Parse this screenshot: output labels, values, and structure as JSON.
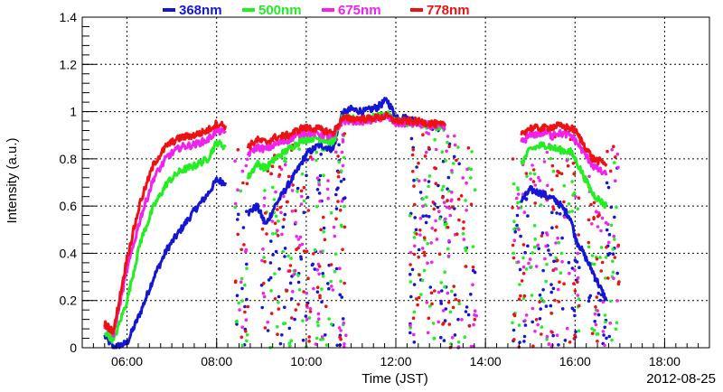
{
  "chart_data": {
    "type": "scatter",
    "title": "",
    "xlabel": "Time (JST)",
    "ylabel": "Intensity (a.u.)",
    "date_label": "2012-08-25",
    "xlim": [
      5.0,
      19.0
    ],
    "ylim": [
      0,
      1.4
    ],
    "x_ticks": [
      {
        "value": 6,
        "label": "06:00"
      },
      {
        "value": 8,
        "label": "08:00"
      },
      {
        "value": 10,
        "label": "10:00"
      },
      {
        "value": 12,
        "label": "12:00"
      },
      {
        "value": 14,
        "label": "14:00"
      },
      {
        "value": 16,
        "label": "16:00"
      },
      {
        "value": 18,
        "label": "18:00"
      }
    ],
    "y_ticks": [
      {
        "value": 0,
        "label": "0"
      },
      {
        "value": 0.2,
        "label": "0.2"
      },
      {
        "value": 0.4,
        "label": "0.4"
      },
      {
        "value": 0.6,
        "label": "0.6"
      },
      {
        "value": 0.8,
        "label": "0.8"
      },
      {
        "value": 1.0,
        "label": "1"
      },
      {
        "value": 1.2,
        "label": "1.2"
      },
      {
        "value": 1.4,
        "label": "1.4"
      }
    ],
    "grid": true,
    "legend_position": "top",
    "series": [
      {
        "name": "368nm",
        "color": "#1515d6",
        "values": [
          [
            5.5,
            0.05
          ],
          [
            5.7,
            0.0
          ],
          [
            6.0,
            0.02
          ],
          [
            6.3,
            0.15
          ],
          [
            6.6,
            0.3
          ],
          [
            6.9,
            0.42
          ],
          [
            7.2,
            0.5
          ],
          [
            7.5,
            0.58
          ],
          [
            7.8,
            0.65
          ],
          [
            8.0,
            0.71
          ],
          [
            8.2,
            0.7
          ],
          [
            8.7,
            0.57
          ],
          [
            8.9,
            0.6
          ],
          [
            9.1,
            0.52
          ],
          [
            9.3,
            0.6
          ],
          [
            9.5,
            0.66
          ],
          [
            9.8,
            0.75
          ],
          [
            10.0,
            0.82
          ],
          [
            10.3,
            0.86
          ],
          [
            10.6,
            0.84
          ],
          [
            10.8,
            0.99
          ],
          [
            11.0,
            1.01
          ],
          [
            11.3,
            1.0
          ],
          [
            11.6,
            1.02
          ],
          [
            11.8,
            1.05
          ],
          [
            12.0,
            0.98
          ],
          [
            12.3,
            0.97
          ],
          [
            12.6,
            0.95
          ],
          [
            12.9,
            0.93
          ],
          [
            13.1,
            0.94
          ],
          [
            14.8,
            0.62
          ],
          [
            15.0,
            0.67
          ],
          [
            15.3,
            0.65
          ],
          [
            15.6,
            0.62
          ],
          [
            15.9,
            0.55
          ],
          [
            16.0,
            0.47
          ],
          [
            16.4,
            0.32
          ],
          [
            16.7,
            0.2
          ]
        ],
        "scatter_bounds": [
          [
            8.4,
            8.7
          ],
          [
            9.0,
            10.9
          ],
          [
            12.3,
            13.8
          ],
          [
            14.6,
            16.1
          ],
          [
            16.3,
            17.0
          ]
        ]
      },
      {
        "name": "500nm",
        "color": "#22ee22",
        "values": [
          [
            5.5,
            0.07
          ],
          [
            5.7,
            0.03
          ],
          [
            6.0,
            0.2
          ],
          [
            6.3,
            0.45
          ],
          [
            6.6,
            0.6
          ],
          [
            6.9,
            0.7
          ],
          [
            7.2,
            0.75
          ],
          [
            7.5,
            0.77
          ],
          [
            7.8,
            0.8
          ],
          [
            8.0,
            0.87
          ],
          [
            8.2,
            0.85
          ],
          [
            8.7,
            0.72
          ],
          [
            8.9,
            0.78
          ],
          [
            9.1,
            0.76
          ],
          [
            9.3,
            0.8
          ],
          [
            9.6,
            0.84
          ],
          [
            9.9,
            0.88
          ],
          [
            10.2,
            0.89
          ],
          [
            10.6,
            0.87
          ],
          [
            10.8,
            0.97
          ],
          [
            11.0,
            0.97
          ],
          [
            11.4,
            0.97
          ],
          [
            11.8,
            0.99
          ],
          [
            12.0,
            0.96
          ],
          [
            12.4,
            0.95
          ],
          [
            12.8,
            0.94
          ],
          [
            13.1,
            0.93
          ],
          [
            14.8,
            0.78
          ],
          [
            15.0,
            0.84
          ],
          [
            15.3,
            0.86
          ],
          [
            15.6,
            0.84
          ],
          [
            15.9,
            0.83
          ],
          [
            16.0,
            0.8
          ],
          [
            16.4,
            0.65
          ],
          [
            16.7,
            0.6
          ]
        ],
        "scatter_bounds": [
          [
            8.4,
            8.7
          ],
          [
            9.0,
            10.9
          ],
          [
            12.3,
            13.8
          ],
          [
            14.6,
            16.1
          ],
          [
            16.3,
            17.0
          ]
        ]
      },
      {
        "name": "675nm",
        "color": "#f022f0",
        "values": [
          [
            5.5,
            0.09
          ],
          [
            5.7,
            0.06
          ],
          [
            6.0,
            0.33
          ],
          [
            6.3,
            0.55
          ],
          [
            6.6,
            0.72
          ],
          [
            6.9,
            0.81
          ],
          [
            7.2,
            0.85
          ],
          [
            7.5,
            0.86
          ],
          [
            7.8,
            0.88
          ],
          [
            8.0,
            0.92
          ],
          [
            8.2,
            0.91
          ],
          [
            8.7,
            0.82
          ],
          [
            8.9,
            0.85
          ],
          [
            9.1,
            0.84
          ],
          [
            9.3,
            0.86
          ],
          [
            9.6,
            0.88
          ],
          [
            9.9,
            0.91
          ],
          [
            10.2,
            0.91
          ],
          [
            10.6,
            0.89
          ],
          [
            10.8,
            0.96
          ],
          [
            11.0,
            0.96
          ],
          [
            11.4,
            0.96
          ],
          [
            11.8,
            0.98
          ],
          [
            12.0,
            0.95
          ],
          [
            12.4,
            0.95
          ],
          [
            12.8,
            0.94
          ],
          [
            13.1,
            0.93
          ],
          [
            14.8,
            0.87
          ],
          [
            15.0,
            0.9
          ],
          [
            15.3,
            0.91
          ],
          [
            15.6,
            0.91
          ],
          [
            15.9,
            0.9
          ],
          [
            16.0,
            0.88
          ],
          [
            16.4,
            0.77
          ],
          [
            16.7,
            0.73
          ]
        ],
        "scatter_bounds": [
          [
            8.4,
            8.7
          ],
          [
            9.0,
            10.9
          ],
          [
            12.3,
            13.8
          ],
          [
            14.6,
            16.1
          ],
          [
            16.3,
            17.0
          ]
        ]
      },
      {
        "name": "778nm",
        "color": "#ee1111",
        "values": [
          [
            5.5,
            0.1
          ],
          [
            5.7,
            0.07
          ],
          [
            6.0,
            0.38
          ],
          [
            6.3,
            0.62
          ],
          [
            6.6,
            0.78
          ],
          [
            6.9,
            0.86
          ],
          [
            7.2,
            0.89
          ],
          [
            7.5,
            0.9
          ],
          [
            7.8,
            0.92
          ],
          [
            8.0,
            0.95
          ],
          [
            8.2,
            0.94
          ],
          [
            8.7,
            0.85
          ],
          [
            8.9,
            0.88
          ],
          [
            9.1,
            0.87
          ],
          [
            9.3,
            0.89
          ],
          [
            9.6,
            0.9
          ],
          [
            9.9,
            0.93
          ],
          [
            10.2,
            0.93
          ],
          [
            10.6,
            0.91
          ],
          [
            10.8,
            0.97
          ],
          [
            11.0,
            0.97
          ],
          [
            11.4,
            0.97
          ],
          [
            11.8,
            0.98
          ],
          [
            12.0,
            0.96
          ],
          [
            12.4,
            0.96
          ],
          [
            12.8,
            0.95
          ],
          [
            13.1,
            0.94
          ],
          [
            14.8,
            0.91
          ],
          [
            15.0,
            0.93
          ],
          [
            15.3,
            0.93
          ],
          [
            15.6,
            0.94
          ],
          [
            15.9,
            0.93
          ],
          [
            16.0,
            0.92
          ],
          [
            16.4,
            0.8
          ],
          [
            16.7,
            0.78
          ]
        ],
        "scatter_bounds": [
          [
            8.4,
            8.7
          ],
          [
            9.0,
            10.9
          ],
          [
            12.3,
            13.8
          ],
          [
            14.6,
            16.1
          ],
          [
            16.3,
            17.0
          ]
        ]
      }
    ]
  }
}
